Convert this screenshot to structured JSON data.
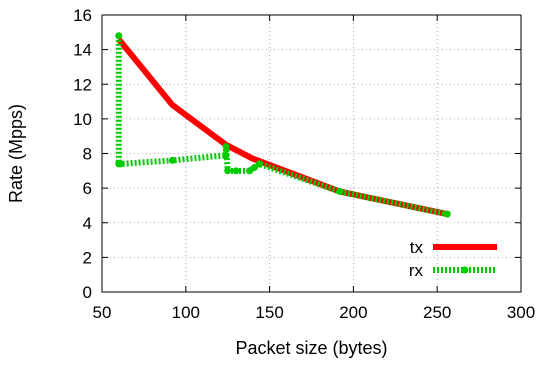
{
  "chart_data": {
    "type": "line",
    "xlabel": "Packet size (bytes)",
    "ylabel": "Rate (Mpps)",
    "xlim": [
      50,
      300
    ],
    "ylim": [
      0,
      16
    ],
    "xticks": [
      50,
      100,
      150,
      200,
      250,
      300
    ],
    "yticks": [
      0,
      2,
      4,
      6,
      8,
      10,
      12,
      14,
      16
    ],
    "grid": true,
    "legend_position": "bottom-right",
    "series": [
      {
        "name": "tx",
        "color": "#ff0000",
        "style": "solid",
        "x": [
          60,
          92,
          124,
          140,
          192,
          256
        ],
        "y": [
          14.6,
          10.8,
          8.5,
          7.7,
          5.8,
          4.5
        ]
      },
      {
        "name": "rx",
        "color": "#00cc00",
        "style": "dotted",
        "x": [
          60,
          60,
          61,
          92,
          124,
          124,
          125,
          130,
          138,
          141,
          144,
          192,
          256
        ],
        "y": [
          14.8,
          7.4,
          7.4,
          7.6,
          7.9,
          8.4,
          7.0,
          7.0,
          7.0,
          7.2,
          7.4,
          5.8,
          4.5
        ]
      }
    ]
  }
}
